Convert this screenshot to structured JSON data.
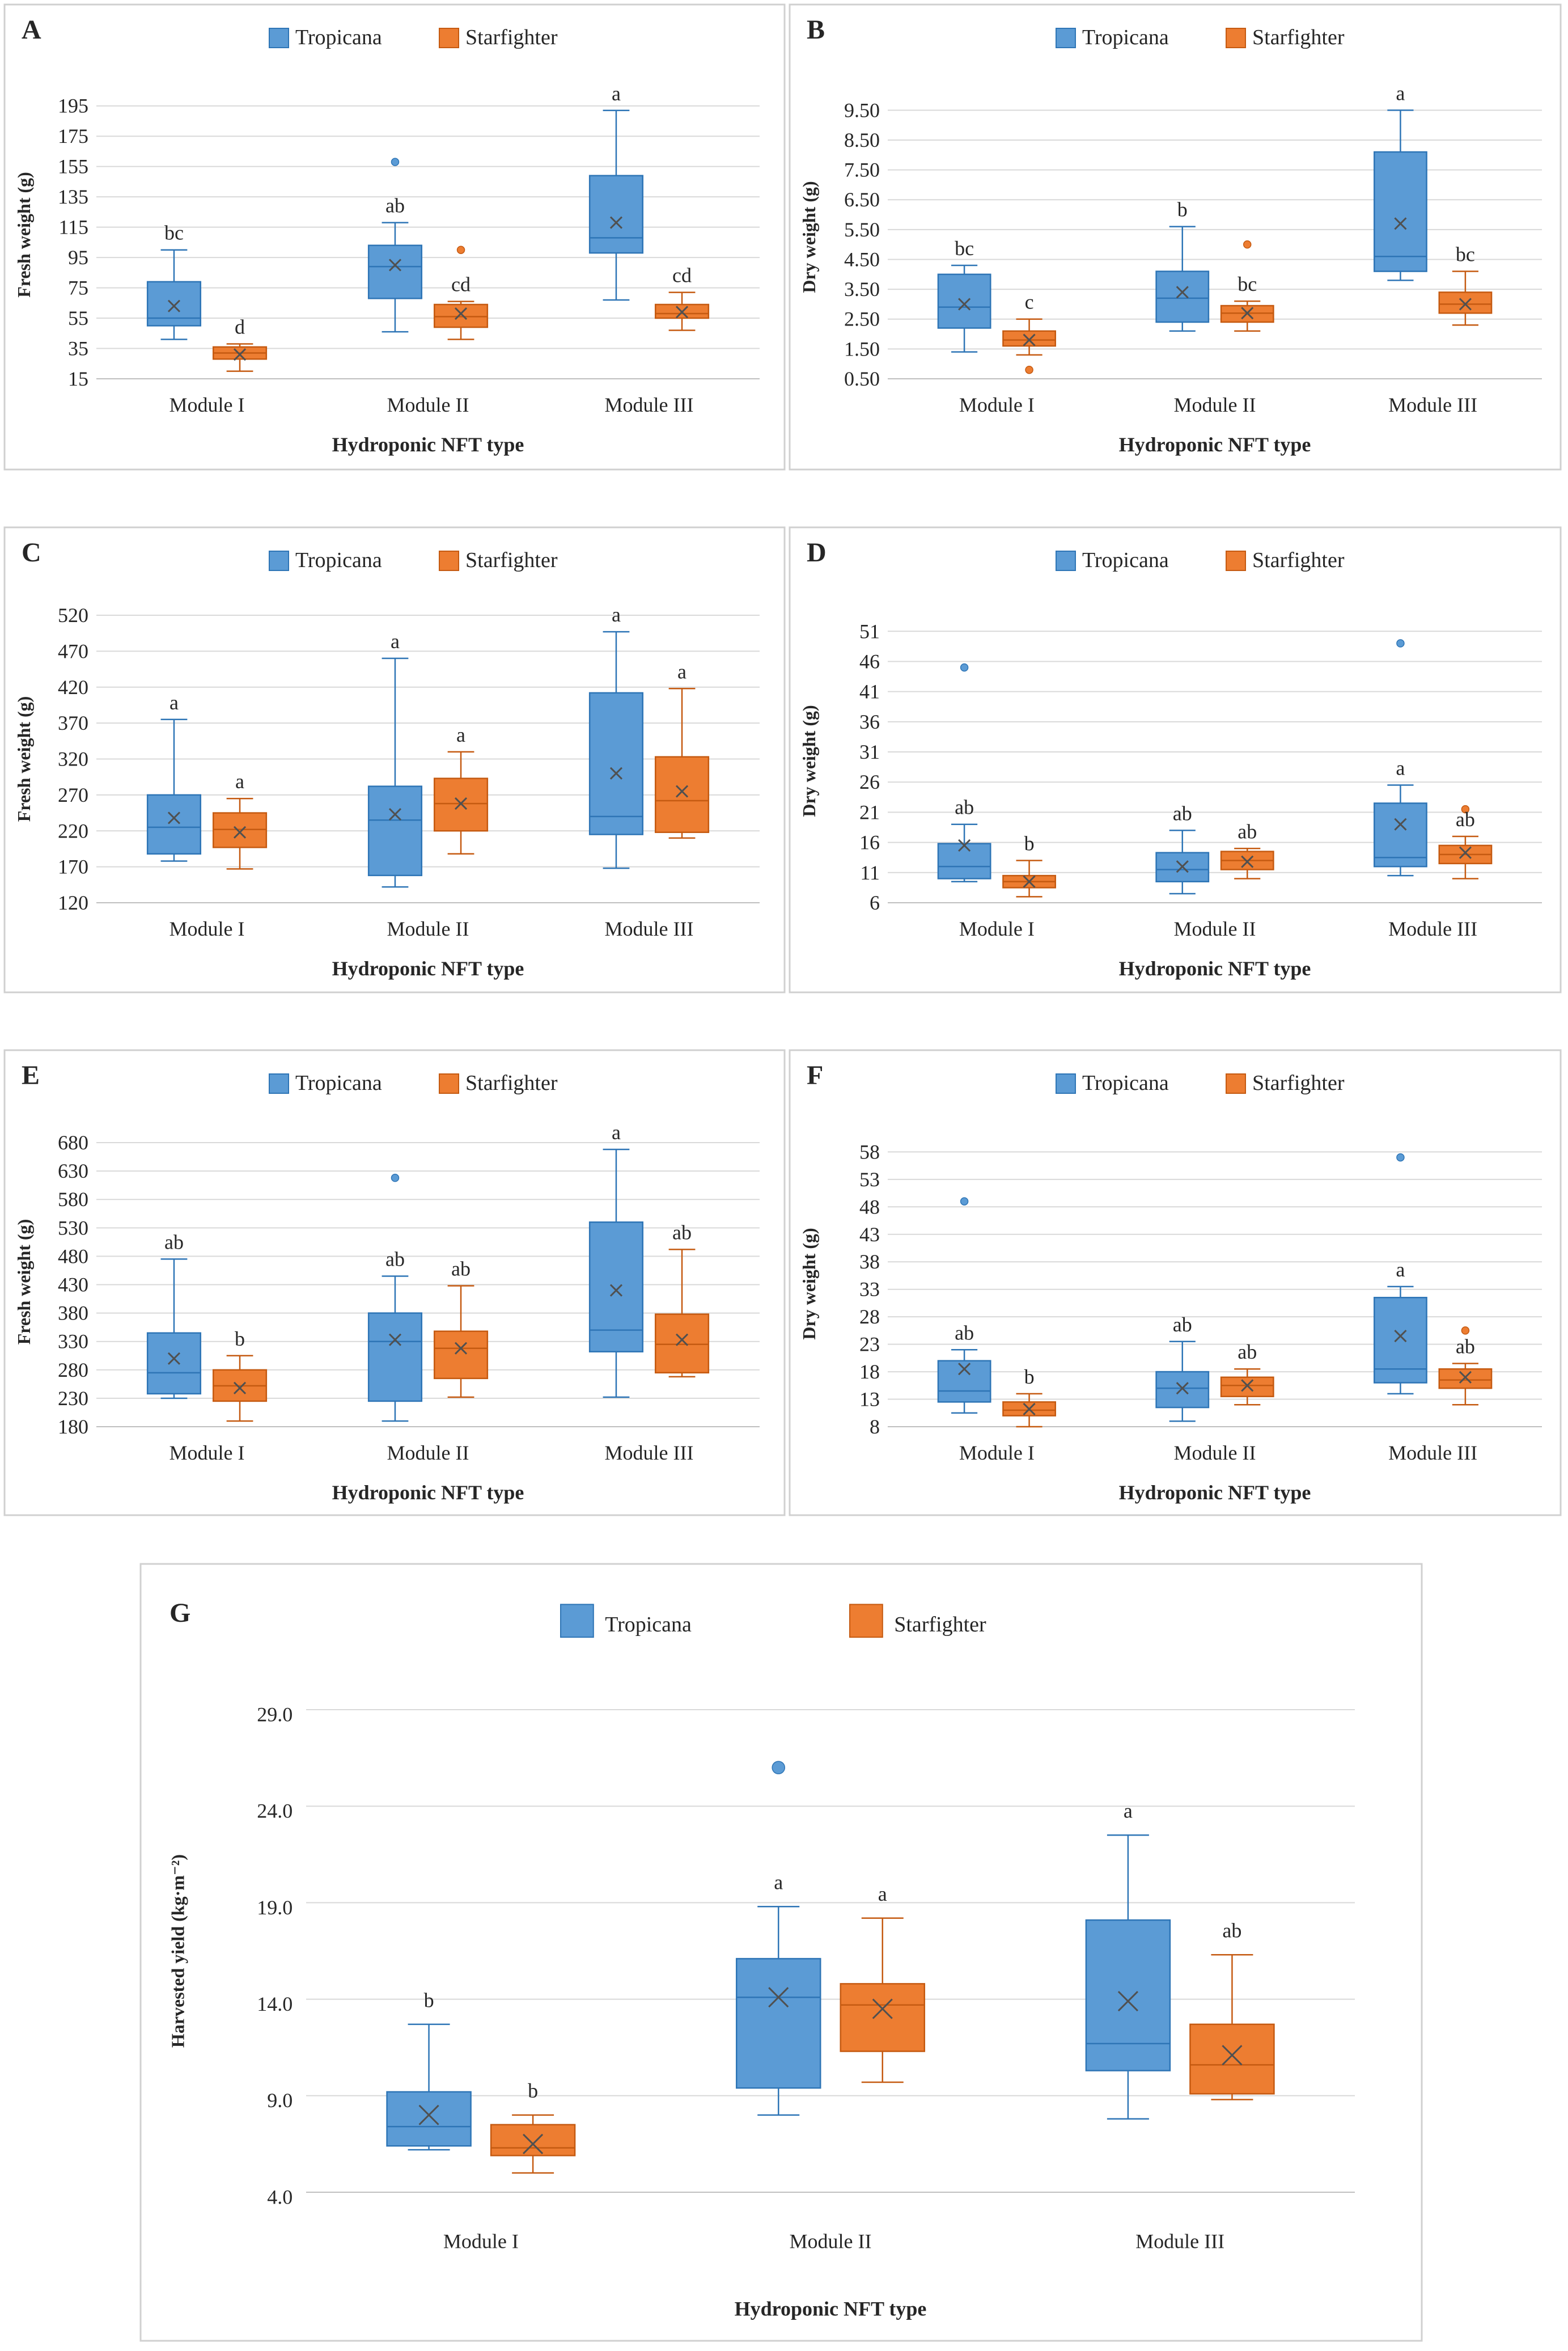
{
  "colors": {
    "tropicana": "#5b9bd5",
    "tropicana_edge": "#2e75b6",
    "starfighter": "#ed7d31",
    "starfighter_edge": "#c55a11"
  },
  "chart_data": [
    {
      "id": "A",
      "type": "box",
      "panel_label": "A",
      "legend": [
        "Tropicana",
        "Starfighter"
      ],
      "xlabel": "Hydroponic  NFT type",
      "ylabel": "Fresh weight (g)",
      "categories": [
        "Module I",
        "Module II",
        "Module III"
      ],
      "ylim": [
        15,
        205
      ],
      "yticks": [
        15,
        35,
        55,
        75,
        95,
        115,
        135,
        155,
        175,
        195
      ],
      "ytick_labels": [
        "15",
        "35",
        "55",
        "75",
        "95",
        "115",
        "135",
        "155",
        "175",
        "195"
      ],
      "series": [
        {
          "name": "Tropicana",
          "boxes": [
            {
              "min": 41,
              "q1": 50,
              "median": 55,
              "q3": 79,
              "max": 100,
              "mean": 63,
              "outliers": [],
              "label": "bc"
            },
            {
              "min": 46,
              "q1": 68,
              "median": 89,
              "q3": 103,
              "max": 118,
              "mean": 90,
              "outliers": [
                158
              ],
              "label": "ab"
            },
            {
              "min": 67,
              "q1": 98,
              "median": 108,
              "q3": 149,
              "max": 192,
              "mean": 118,
              "outliers": [],
              "label": "a"
            }
          ]
        },
        {
          "name": "Starfighter",
          "boxes": [
            {
              "min": 20,
              "q1": 28,
              "median": 32,
              "q3": 36,
              "max": 38,
              "mean": 31,
              "outliers": [],
              "label": "d"
            },
            {
              "min": 41,
              "q1": 49,
              "median": 56,
              "q3": 64,
              "max": 66,
              "mean": 58,
              "outliers": [
                100
              ],
              "label": "cd"
            },
            {
              "min": 47,
              "q1": 55,
              "median": 58,
              "q3": 64,
              "max": 72,
              "mean": 59,
              "outliers": [],
              "label": "cd"
            }
          ]
        }
      ]
    },
    {
      "id": "B",
      "type": "box",
      "panel_label": "B",
      "legend": [
        "Tropicana",
        "Starfighter"
      ],
      "xlabel": "Hydroponic  NFT type",
      "ylabel": "Dry weight (g)",
      "categories": [
        "Module I",
        "Module II",
        "Module III"
      ],
      "ylim": [
        0.5,
        10.0
      ],
      "yticks": [
        0.5,
        1.5,
        2.5,
        3.5,
        4.5,
        5.5,
        6.5,
        7.5,
        8.5,
        9.5
      ],
      "ytick_labels": [
        "0.50",
        "1.50",
        "2.50",
        "3.50",
        "4.50",
        "5.50",
        "6.50",
        "7.50",
        "8.50",
        "9.50"
      ],
      "series": [
        {
          "name": "Tropicana",
          "boxes": [
            {
              "min": 1.4,
              "q1": 2.2,
              "median": 2.9,
              "q3": 4.0,
              "max": 4.3,
              "mean": 3.0,
              "outliers": [],
              "label": "bc"
            },
            {
              "min": 2.1,
              "q1": 2.4,
              "median": 3.2,
              "q3": 4.1,
              "max": 5.6,
              "mean": 3.4,
              "outliers": [],
              "label": "b"
            },
            {
              "min": 3.8,
              "q1": 4.1,
              "median": 4.6,
              "q3": 8.1,
              "max": 9.5,
              "mean": 5.7,
              "outliers": [],
              "label": "a"
            }
          ]
        },
        {
          "name": "Starfighter",
          "boxes": [
            {
              "min": 1.3,
              "q1": 1.6,
              "median": 1.8,
              "q3": 2.1,
              "max": 2.5,
              "mean": 1.8,
              "outliers": [
                0.8
              ],
              "label": "c"
            },
            {
              "min": 2.1,
              "q1": 2.4,
              "median": 2.7,
              "q3": 2.95,
              "max": 3.1,
              "mean": 2.7,
              "outliers": [
                5.0
              ],
              "label": "bc"
            },
            {
              "min": 2.3,
              "q1": 2.7,
              "median": 3.0,
              "q3": 3.4,
              "max": 4.1,
              "mean": 3.0,
              "outliers": [],
              "label": "bc"
            }
          ]
        }
      ]
    },
    {
      "id": "C",
      "type": "box",
      "panel_label": "C",
      "legend": [
        "Tropicana",
        "Starfighter"
      ],
      "xlabel": "Hydroponic  NFT type",
      "ylabel": "Fresh weight (g)",
      "categories": [
        "Module I",
        "Module II",
        "Module III"
      ],
      "ylim": [
        120,
        520
      ],
      "yticks": [
        120,
        170,
        220,
        270,
        320,
        370,
        420,
        470,
        520
      ],
      "ytick_labels": [
        "120",
        "170",
        "220",
        "270",
        "320",
        "370",
        "420",
        "470",
        "520"
      ],
      "series": [
        {
          "name": "Tropicana",
          "boxes": [
            {
              "min": 178,
              "q1": 188,
              "median": 225,
              "q3": 270,
              "max": 375,
              "mean": 238,
              "outliers": [],
              "label": "a"
            },
            {
              "min": 142,
              "q1": 158,
              "median": 235,
              "q3": 282,
              "max": 460,
              "mean": 243,
              "outliers": [],
              "label": "a"
            },
            {
              "min": 168,
              "q1": 215,
              "median": 240,
              "q3": 412,
              "max": 497,
              "mean": 300,
              "outliers": [],
              "label": "a"
            }
          ]
        },
        {
          "name": "Starfighter",
          "boxes": [
            {
              "min": 167,
              "q1": 197,
              "median": 222,
              "q3": 245,
              "max": 265,
              "mean": 218,
              "outliers": [],
              "label": "a"
            },
            {
              "min": 188,
              "q1": 220,
              "median": 258,
              "q3": 293,
              "max": 330,
              "mean": 258,
              "outliers": [],
              "label": "a"
            },
            {
              "min": 210,
              "q1": 218,
              "median": 262,
              "q3": 323,
              "max": 418,
              "mean": 275,
              "outliers": [],
              "label": "a"
            }
          ]
        }
      ]
    },
    {
      "id": "D",
      "type": "box",
      "panel_label": "D",
      "legend": [
        "Tropicana",
        "Starfighter"
      ],
      "xlabel": "Hydroponic  NFT type",
      "ylabel": "Dry weight (g)",
      "categories": [
        "Module I",
        "Module II",
        "Module III"
      ],
      "ylim": [
        6,
        53
      ],
      "yticks": [
        6,
        11,
        16,
        21,
        26,
        31,
        36,
        41,
        46,
        51
      ],
      "ytick_labels": [
        "6",
        "11",
        "16",
        "21",
        "26",
        "31",
        "36",
        "41",
        "46",
        "51"
      ],
      "series": [
        {
          "name": "Tropicana",
          "boxes": [
            {
              "min": 9.5,
              "q1": 10.0,
              "median": 12.0,
              "q3": 15.8,
              "max": 19.0,
              "mean": 15.5,
              "outliers": [
                45
              ],
              "label": "ab"
            },
            {
              "min": 7.5,
              "q1": 9.5,
              "median": 11.5,
              "q3": 14.3,
              "max": 18.0,
              "mean": 12.0,
              "outliers": [],
              "label": "ab"
            },
            {
              "min": 10.5,
              "q1": 12.0,
              "median": 13.5,
              "q3": 22.5,
              "max": 25.5,
              "mean": 19.0,
              "outliers": [
                49
              ],
              "label": "a"
            }
          ]
        },
        {
          "name": "Starfighter",
          "boxes": [
            {
              "min": 7.0,
              "q1": 8.5,
              "median": 9.5,
              "q3": 10.5,
              "max": 13.0,
              "mean": 9.5,
              "outliers": [],
              "label": "b"
            },
            {
              "min": 10.0,
              "q1": 11.5,
              "median": 13.0,
              "q3": 14.5,
              "max": 15.0,
              "mean": 12.8,
              "outliers": [],
              "label": "ab"
            },
            {
              "min": 10.0,
              "q1": 12.5,
              "median": 14.0,
              "q3": 15.5,
              "max": 17.0,
              "mean": 14.3,
              "outliers": [
                21.5
              ],
              "label": "ab"
            }
          ]
        }
      ]
    },
    {
      "id": "E",
      "type": "box",
      "panel_label": "E",
      "legend": [
        "Tropicana",
        "Starfighter"
      ],
      "xlabel": "Hydroponic  NFT type",
      "ylabel": "Fresh weight (g)",
      "categories": [
        "Module I",
        "Module II",
        "Module III"
      ],
      "ylim": [
        180,
        690
      ],
      "yticks": [
        180,
        230,
        280,
        330,
        380,
        430,
        480,
        530,
        580,
        630,
        680
      ],
      "ytick_labels": [
        "180",
        "230",
        "280",
        "330",
        "380",
        "430",
        "480",
        "530",
        "580",
        "630",
        "680"
      ],
      "series": [
        {
          "name": "Tropicana",
          "boxes": [
            {
              "min": 230,
              "q1": 238,
              "median": 275,
              "q3": 345,
              "max": 475,
              "mean": 300,
              "outliers": [],
              "label": "ab"
            },
            {
              "min": 190,
              "q1": 225,
              "median": 330,
              "q3": 380,
              "max": 445,
              "mean": 333,
              "outliers": [
                618
              ],
              "label": "ab"
            },
            {
              "min": 232,
              "q1": 312,
              "median": 350,
              "q3": 540,
              "max": 668,
              "mean": 420,
              "outliers": [],
              "label": "a"
            }
          ]
        },
        {
          "name": "Starfighter",
          "boxes": [
            {
              "min": 190,
              "q1": 225,
              "median": 252,
              "q3": 280,
              "max": 305,
              "mean": 248,
              "outliers": [],
              "label": "b"
            },
            {
              "min": 232,
              "q1": 265,
              "median": 318,
              "q3": 348,
              "max": 428,
              "mean": 318,
              "outliers": [],
              "label": "ab"
            },
            {
              "min": 268,
              "q1": 275,
              "median": 325,
              "q3": 378,
              "max": 492,
              "mean": 333,
              "outliers": [],
              "label": "ab"
            }
          ]
        }
      ]
    },
    {
      "id": "F",
      "type": "box",
      "panel_label": "F",
      "legend": [
        "Tropicana",
        "Starfighter"
      ],
      "xlabel": "Hydroponic  NFT type",
      "ylabel": "Dry weight (g)",
      "categories": [
        "Module I",
        "Module II",
        "Module III"
      ],
      "ylim": [
        8,
        60
      ],
      "yticks": [
        8,
        13,
        18,
        23,
        28,
        33,
        38,
        43,
        48,
        53,
        58
      ],
      "ytick_labels": [
        "8",
        "13",
        "18",
        "23",
        "28",
        "33",
        "38",
        "43",
        "48",
        "53",
        "58"
      ],
      "series": [
        {
          "name": "Tropicana",
          "boxes": [
            {
              "min": 10.5,
              "q1": 12.5,
              "median": 14.5,
              "q3": 20.0,
              "max": 22.0,
              "mean": 18.5,
              "outliers": [
                49
              ],
              "label": "ab"
            },
            {
              "min": 9.0,
              "q1": 11.5,
              "median": 15.0,
              "q3": 18.0,
              "max": 23.5,
              "mean": 15.0,
              "outliers": [],
              "label": "ab"
            },
            {
              "min": 14.0,
              "q1": 16.0,
              "median": 18.5,
              "q3": 31.5,
              "max": 33.5,
              "mean": 24.5,
              "outliers": [
                57
              ],
              "label": "a"
            }
          ]
        },
        {
          "name": "Starfighter",
          "boxes": [
            {
              "min": 8.0,
              "q1": 10.0,
              "median": 11.0,
              "q3": 12.5,
              "max": 14.0,
              "mean": 11.2,
              "outliers": [],
              "label": "b"
            },
            {
              "min": 12.0,
              "q1": 13.5,
              "median": 15.5,
              "q3": 17.0,
              "max": 18.5,
              "mean": 15.5,
              "outliers": [],
              "label": "ab"
            },
            {
              "min": 12.0,
              "q1": 15.0,
              "median": 16.5,
              "q3": 18.5,
              "max": 19.5,
              "mean": 17.0,
              "outliers": [
                25.5
              ],
              "label": "ab"
            }
          ]
        }
      ]
    },
    {
      "id": "G",
      "type": "box",
      "panel_label": "G",
      "legend": [
        "Tropicana",
        "Starfighter"
      ],
      "xlabel": "Hydroponic  NFT type",
      "ylabel": "Harvested yield (kg·m⁻²)",
      "categories": [
        "Module I",
        "Module II",
        "Module III"
      ],
      "ylim": [
        4.0,
        29.0
      ],
      "yticks": [
        4.0,
        9.0,
        14.0,
        19.0,
        24.0,
        29.0
      ],
      "ytick_labels": [
        "4.0",
        "9.0",
        "14.0",
        "19.0",
        "24.0",
        "29.0"
      ],
      "series": [
        {
          "name": "Tropicana",
          "boxes": [
            {
              "min": 6.2,
              "q1": 6.4,
              "median": 7.4,
              "q3": 9.2,
              "max": 12.7,
              "mean": 8.0,
              "outliers": [],
              "label": "b"
            },
            {
              "min": 8.0,
              "q1": 9.4,
              "median": 14.1,
              "q3": 16.1,
              "max": 18.8,
              "mean": 14.1,
              "outliers": [
                26.0
              ],
              "label": "a"
            },
            {
              "min": 7.8,
              "q1": 10.3,
              "median": 11.7,
              "q3": 18.1,
              "max": 22.5,
              "mean": 13.9,
              "outliers": [],
              "label": "a"
            }
          ]
        },
        {
          "name": "Starfighter",
          "boxes": [
            {
              "min": 5.0,
              "q1": 5.9,
              "median": 6.3,
              "q3": 7.5,
              "max": 8.0,
              "mean": 6.5,
              "outliers": [],
              "label": "b"
            },
            {
              "min": 9.7,
              "q1": 11.3,
              "median": 13.7,
              "q3": 14.8,
              "max": 18.2,
              "mean": 13.5,
              "outliers": [],
              "label": "a"
            },
            {
              "min": 8.8,
              "q1": 9.1,
              "median": 10.6,
              "q3": 12.7,
              "max": 16.3,
              "mean": 11.1,
              "outliers": [],
              "label": "ab"
            }
          ]
        }
      ]
    }
  ]
}
